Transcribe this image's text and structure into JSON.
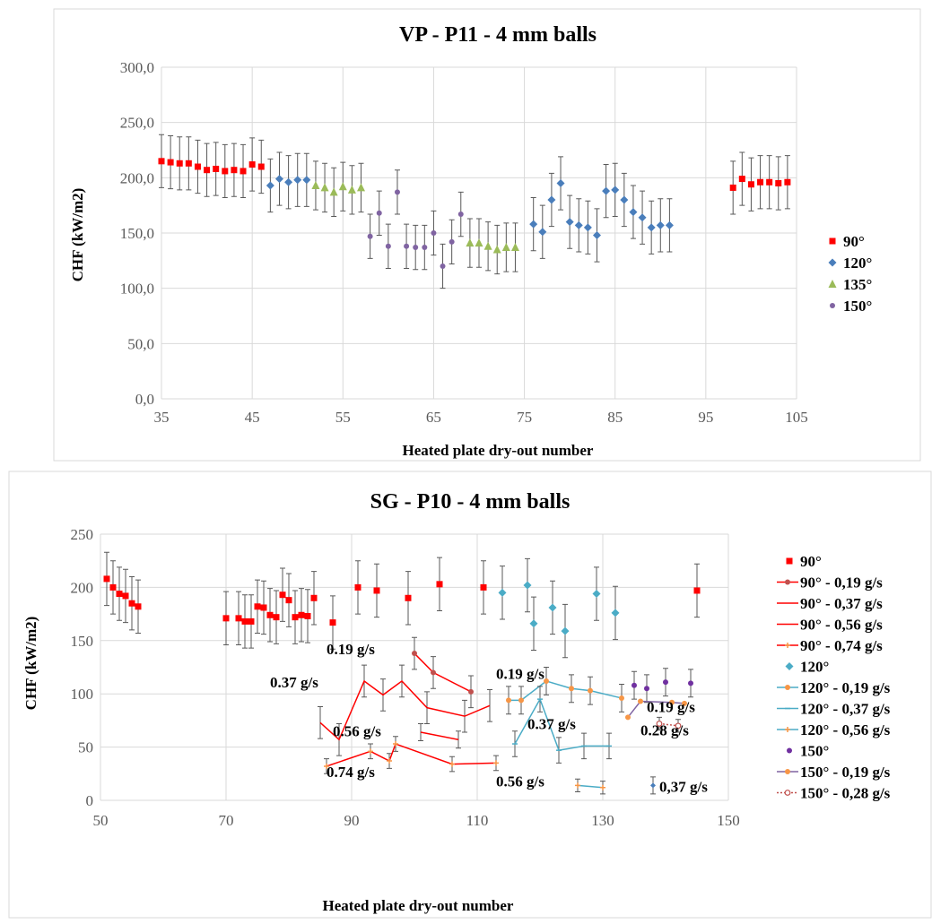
{
  "chart_data": [
    {
      "type": "scatter",
      "title": "VP - P11 - 4 mm balls",
      "xlabel": "Heated plate dry-out number",
      "ylabel": "CHF (kW/m2)",
      "xlim": [
        35,
        105
      ],
      "ylim": [
        0,
        300
      ],
      "xticks": [
        35,
        45,
        55,
        65,
        75,
        85,
        95,
        105
      ],
      "xtick_labels": [
        "35",
        "45",
        "55",
        "65",
        "75",
        "85",
        "95",
        "105"
      ],
      "yticks": [
        0,
        50,
        100,
        150,
        200,
        250,
        300
      ],
      "ytick_labels": [
        "0,0",
        "50,0",
        "100,0",
        "150,0",
        "200,0",
        "250,0",
        "300,0"
      ],
      "grid": true,
      "legend_position": "right",
      "series": [
        {
          "name": "90°",
          "color": "#ff0000",
          "marker": "square",
          "error": 24,
          "x": [
            35,
            36,
            37,
            38,
            39,
            40,
            41,
            42,
            43,
            44,
            45,
            46,
            98,
            99,
            100,
            101,
            102,
            103,
            104
          ],
          "y": [
            215,
            214,
            213,
            213,
            210,
            207,
            208,
            206,
            207,
            206,
            212,
            210,
            191,
            199,
            194,
            196,
            196,
            195,
            196
          ]
        },
        {
          "name": "120°",
          "color": "#4a7ebb",
          "marker": "diamond",
          "error": 24,
          "x": [
            47,
            48,
            49,
            50,
            51,
            76,
            77,
            78,
            79,
            80,
            81,
            82,
            83,
            84,
            85,
            86,
            87,
            88,
            89,
            90,
            91
          ],
          "y": [
            193,
            199,
            196,
            198,
            198,
            158,
            151,
            180,
            195,
            160,
            157,
            155,
            148,
            188,
            189,
            180,
            169,
            164,
            155,
            157,
            157
          ]
        },
        {
          "name": "135°",
          "color": "#9bbb59",
          "marker": "triangle",
          "error": 22,
          "x": [
            52,
            53,
            54,
            55,
            56,
            57,
            69,
            70,
            71,
            72,
            73,
            74
          ],
          "y": [
            193,
            191,
            187,
            192,
            189,
            191,
            141,
            141,
            138,
            135,
            137,
            137
          ]
        },
        {
          "name": "150°",
          "color": "#8064a2",
          "marker": "circle",
          "error": 20,
          "x": [
            58,
            59,
            60,
            61,
            62,
            63,
            64,
            65,
            66,
            67,
            68
          ],
          "y": [
            147,
            168,
            138,
            187,
            138,
            137,
            137,
            150,
            120,
            142,
            167
          ]
        }
      ]
    },
    {
      "type": "scatter",
      "title": "SG - P10 - 4 mm balls",
      "xlabel": "Heated plate dry-out number",
      "ylabel": "CHF (kW/m2)",
      "xlim": [
        50,
        150
      ],
      "ylim": [
        0,
        250
      ],
      "xticks": [
        50,
        70,
        90,
        110,
        130,
        150
      ],
      "xtick_labels": [
        "50",
        "70",
        "90",
        "110",
        "130",
        "150"
      ],
      "yticks": [
        0,
        50,
        100,
        150,
        200,
        250
      ],
      "ytick_labels": [
        "0",
        "50",
        "100",
        "150",
        "200",
        "250"
      ],
      "grid": true,
      "legend_position": "right",
      "annotations": [
        {
          "text": "0.19 g/s",
          "x": 86,
          "y": 137
        },
        {
          "text": "0.37 g/s",
          "x": 77,
          "y": 106
        },
        {
          "text": "0.56 g/s",
          "x": 87,
          "y": 60
        },
        {
          "text": "0.74 g/s",
          "x": 86,
          "y": 22
        },
        {
          "text": "0.19 g/s",
          "x": 113,
          "y": 114
        },
        {
          "text": "0.37 g/s",
          "x": 118,
          "y": 67
        },
        {
          "text": "0.56 g/s",
          "x": 113,
          "y": 13
        },
        {
          "text": "0.19 g/s",
          "x": 137,
          "y": 83
        },
        {
          "text": "0.28 g/s",
          "x": 136,
          "y": 61
        },
        {
          "text": "0,37 g/s",
          "x": 139,
          "y": 8
        }
      ],
      "series": [
        {
          "name": "90°",
          "color": "#ff0000",
          "marker": "square",
          "line": false,
          "error": 25,
          "x": [
            51,
            52,
            53,
            54,
            55,
            56,
            70,
            72,
            73,
            74,
            75,
            76,
            77,
            78,
            79,
            80,
            81,
            82,
            83,
            84,
            87,
            91,
            94,
            99,
            104,
            111,
            145
          ],
          "y": [
            208,
            200,
            194,
            192,
            185,
            182,
            171,
            171,
            168,
            168,
            182,
            181,
            174,
            172,
            193,
            188,
            172,
            174,
            173,
            190,
            167,
            200,
            197,
            190,
            203,
            200,
            197
          ]
        },
        {
          "name": "90° - 0,19 g/s",
          "color": "#ff0000",
          "marker": "circle",
          "markerColor": "#c0504d",
          "line": true,
          "error": 15,
          "x": [
            100,
            103,
            109
          ],
          "y": [
            138,
            120,
            102
          ]
        },
        {
          "name": "90° - 0,37 g/s",
          "color": "#ff0000",
          "marker": "none",
          "line": true,
          "error": 15,
          "x": [
            85,
            88,
            92,
            95,
            98,
            102,
            108,
            112
          ],
          "y": [
            73,
            57,
            112,
            99,
            112,
            87,
            79,
            89
          ]
        },
        {
          "name": "90° - 0,56 g/s",
          "color": "#ff0000",
          "marker": "none",
          "line": true,
          "error": 8,
          "x": [
            101,
            107
          ],
          "y": [
            64,
            57
          ]
        },
        {
          "name": "90° - 0,74 g/s",
          "color": "#ff0000",
          "marker": "cross",
          "markerColor": "#f79646",
          "line": true,
          "error": 7,
          "x": [
            86,
            93,
            96,
            97,
            106,
            113
          ],
          "y": [
            32,
            46,
            37,
            53,
            34,
            35
          ]
        },
        {
          "name": "120°",
          "color": "#4bacc6",
          "marker": "diamond",
          "line": false,
          "error": 25,
          "x": [
            114,
            118,
            119,
            122,
            124,
            129,
            132
          ],
          "y": [
            195,
            202,
            166,
            181,
            159,
            194,
            176
          ]
        },
        {
          "name": "120° - 0,19 g/s",
          "color": "#4bacc6",
          "marker": "circle",
          "markerColor": "#f79646",
          "line": true,
          "error": 13,
          "x": [
            115,
            117,
            121,
            125,
            128,
            133
          ],
          "y": [
            94,
            94,
            112,
            105,
            103,
            96
          ]
        },
        {
          "name": "120° - 0,37 g/s",
          "color": "#4bacc6",
          "marker": "dash",
          "line": true,
          "error": 12,
          "x": [
            116,
            120,
            123,
            127,
            131
          ],
          "y": [
            53,
            95,
            47,
            51,
            51
          ]
        },
        {
          "name": "120° - 0,56 g/s",
          "color": "#4bacc6",
          "marker": "cross",
          "markerColor": "#f79646",
          "line": true,
          "error": 6,
          "x": [
            126,
            130
          ],
          "y": [
            14,
            12
          ]
        },
        {
          "name": "150°",
          "color": "#7030a0",
          "marker": "circle",
          "line": false,
          "error": 13,
          "x": [
            135,
            137,
            140,
            144
          ],
          "y": [
            108,
            105,
            111,
            110
          ]
        },
        {
          "name": "150° - 0,19 g/s",
          "color": "#8064a2",
          "marker": "circle",
          "markerColor": "#f79646",
          "line": true,
          "error": 0,
          "x": [
            134,
            136,
            141,
            143
          ],
          "y": [
            78,
            93,
            92,
            91
          ]
        },
        {
          "name": "150° - 0,28 g/s",
          "color": "#c0504d",
          "marker": "open-circle",
          "line": true,
          "dashed": true,
          "error": 6,
          "x": [
            139,
            142
          ],
          "y": [
            72,
            70
          ]
        },
        {
          "name": "",
          "color": "#4a7ebb",
          "marker": "diamond-small",
          "line": false,
          "error": 8,
          "x": [
            138
          ],
          "y": [
            14
          ]
        }
      ]
    }
  ]
}
